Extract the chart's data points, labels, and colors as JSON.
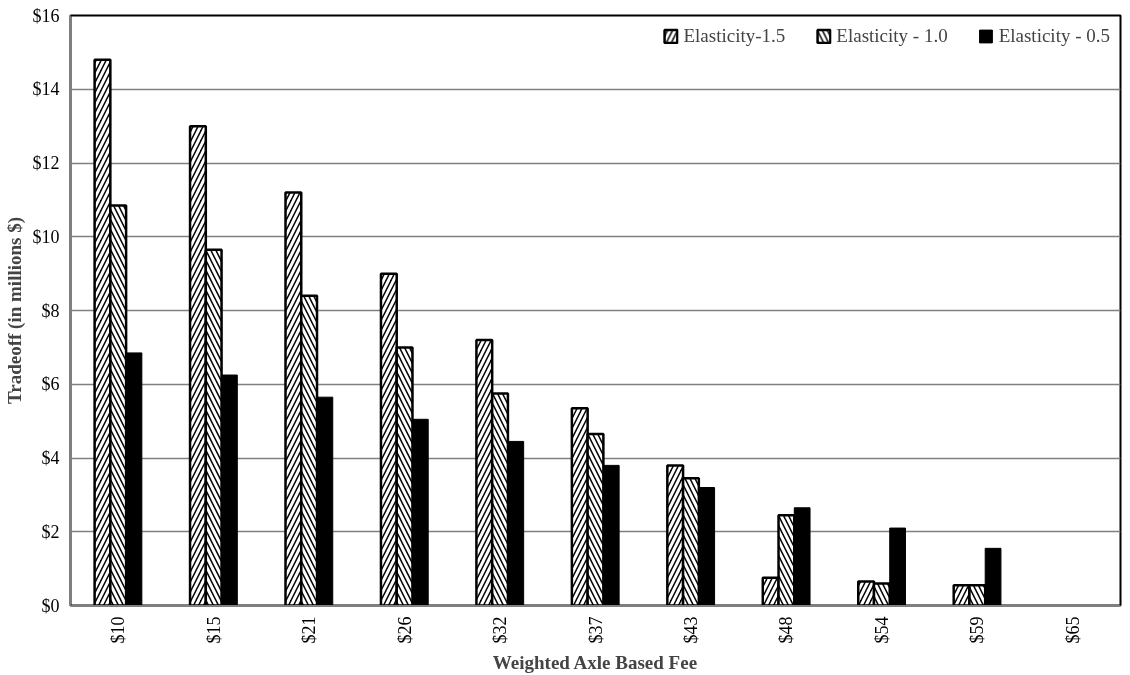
{
  "chart_data": {
    "type": "bar",
    "xlabel": "Weighted Axle Based Fee",
    "ylabel": "Tradeoff (in millions $)",
    "categories": [
      "$10",
      "$15",
      "$21",
      "$26",
      "$32",
      "$37",
      "$43",
      "$48",
      "$54",
      "$59",
      "$65"
    ],
    "series": [
      {
        "name": "Elasticity-1.5",
        "color": "#000000",
        "values": [
          14.8,
          13.0,
          11.2,
          9.0,
          7.2,
          5.35,
          3.8,
          0.75,
          0.65,
          0.55,
          0
        ]
      },
      {
        "name": "Elasticity - 1.0",
        "color": "#000000",
        "values": [
          10.85,
          9.65,
          8.4,
          7.0,
          5.75,
          4.65,
          3.45,
          2.45,
          0.6,
          0.55,
          0
        ]
      },
      {
        "name": "Elasticity - 0.5",
        "color": "#000000",
        "values": [
          6.85,
          6.25,
          5.65,
          5.05,
          4.45,
          3.8,
          3.2,
          2.65,
          2.1,
          1.55,
          0
        ]
      }
    ],
    "ylim": [
      0,
      16
    ],
    "yticks": [
      {
        "value": 0,
        "label": "$0"
      },
      {
        "value": 2,
        "label": "$2"
      },
      {
        "value": 4,
        "label": "$4"
      },
      {
        "value": 6,
        "label": "$6"
      },
      {
        "value": 8,
        "label": "$8"
      },
      {
        "value": 10,
        "label": "$10"
      },
      {
        "value": 12,
        "label": "$12"
      },
      {
        "value": 14,
        "label": "$14"
      },
      {
        "value": 16,
        "label": "$16"
      }
    ],
    "grid": "y",
    "legend": "top right"
  }
}
